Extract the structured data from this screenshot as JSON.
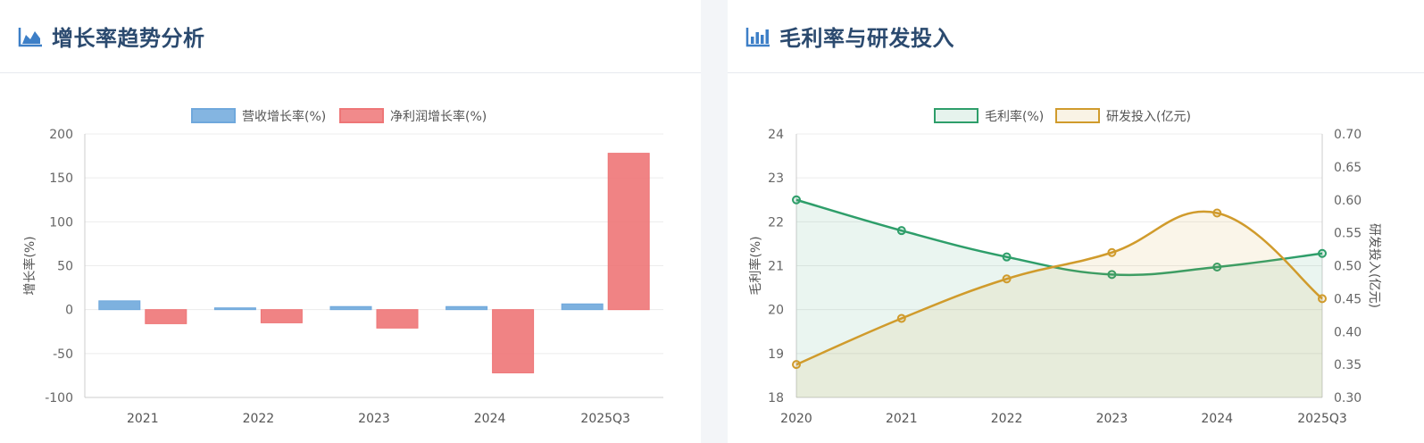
{
  "left_panel": {
    "title": "增长率趋势分析",
    "icon": "area-chart-icon",
    "chart_data": {
      "type": "bar",
      "categories": [
        "2021",
        "2022",
        "2023",
        "2024",
        "2025Q3"
      ],
      "series": [
        {
          "name": "营收增长率(%)",
          "values": [
            10,
            2,
            3.5,
            3.5,
            6.5
          ],
          "color": "#6fa8dc"
        },
        {
          "name": "净利润增长率(%)",
          "values": [
            -16,
            -15,
            -21,
            -72,
            178
          ],
          "color": "#ee7677"
        }
      ],
      "ylabel": "增长率(%)",
      "ylim": [
        -100,
        200
      ],
      "yticks": [
        "200",
        "150",
        "100",
        "50",
        "0",
        "-50",
        "-100"
      ],
      "grid": true,
      "legend": "top-center"
    }
  },
  "right_panel": {
    "title": "毛利率与研发投入",
    "icon": "bar-chart-icon",
    "chart_data": {
      "type": "line",
      "x": [
        "2020",
        "2021",
        "2022",
        "2023",
        "2024",
        "2025Q3"
      ],
      "series": [
        {
          "name": "毛利率(%)",
          "values": [
            22.5,
            21.8,
            21.2,
            20.8,
            20.97,
            21.28
          ],
          "axis": "left",
          "color": "#2e9e6a"
        },
        {
          "name": "研发投入(亿元)",
          "values": [
            0.35,
            0.42,
            0.48,
            0.52,
            0.58,
            0.45
          ],
          "axis": "right",
          "color": "#d09b2c"
        }
      ],
      "ylabel": "毛利率(%)",
      "ylabel_right": "研发投入(亿元)",
      "ylim": [
        18,
        24
      ],
      "ylim_right": [
        0.3,
        0.7
      ],
      "yticks": [
        "24",
        "23",
        "22",
        "21",
        "20",
        "19",
        "18"
      ],
      "yticks_right": [
        "0.70",
        "0.65",
        "0.60",
        "0.55",
        "0.50",
        "0.45",
        "0.40",
        "0.35",
        "0.30"
      ],
      "area_fill": true,
      "grid": true,
      "legend": "top-center"
    }
  }
}
